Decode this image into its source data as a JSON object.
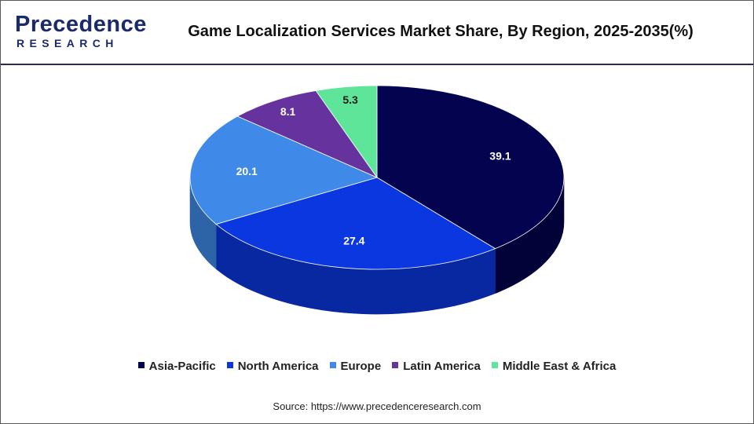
{
  "header": {
    "logo_top": "Precedence",
    "logo_bottom": "RESEARCH",
    "title": "Game Localization Services Market Share, By Region, 2025-2035(%)"
  },
  "chart_data": {
    "type": "pie",
    "title": "Game Localization Services Market Share, By Region, 2025-2035(%)",
    "categories": [
      "Asia-Pacific",
      "North America",
      "Europe",
      "Latin America",
      "Middle East & Africa"
    ],
    "values": [
      39.1,
      27.4,
      20.1,
      8.1,
      5.3
    ],
    "value_labels": [
      "39.1",
      "27.4",
      "20.1",
      "8.1",
      "5.3"
    ],
    "colors": [
      "#03034f",
      "#0b37e0",
      "#3f8ae8",
      "#66329e",
      "#5fe59a"
    ],
    "legend_position": "bottom",
    "style": "3d"
  },
  "footer": {
    "source": "Source: https://www.precedenceresearch.com"
  }
}
